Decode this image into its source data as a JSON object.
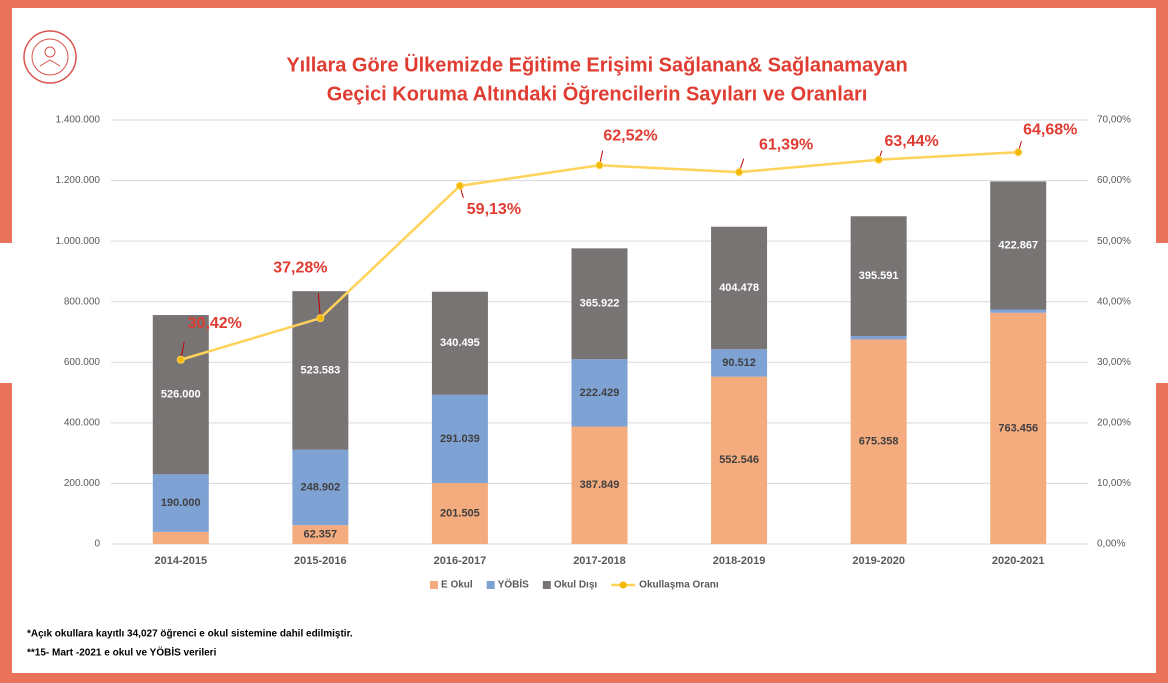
{
  "chart_data": {
    "type": "bar",
    "title": "Yıllara Göre Ülkemizde Eğitime Erişimi Sağlanan& Sağlanamayan",
    "subtitle": "Geçici Koruma Altındaki Öğrencilerin Sayıları ve Oranları",
    "categories": [
      "2014-2015",
      "2015-2016",
      "2016-2017",
      "2017-2018",
      "2018-2019",
      "2019-2020",
      "2020-2021"
    ],
    "stacked": true,
    "series": [
      {
        "name": "E Okul",
        "color": "#f4ab7e",
        "values": [
          40000,
          62357,
          201505,
          387849,
          552546,
          675358,
          763456
        ],
        "value_labels": [
          "40.000",
          "62.357",
          "201.505",
          "387.849",
          "552.546",
          "675.358",
          "763.456"
        ]
      },
      {
        "name": "YÖBİS",
        "color": "#7fa2d5",
        "values": [
          190000,
          248902,
          291039,
          222429,
          90512,
          11223,
          10801
        ],
        "value_labels": [
          "190.000",
          "248.902",
          "291.039",
          "222.429",
          "90.512",
          "11.223",
          "10.801"
        ]
      },
      {
        "name": "Okul Dışı",
        "color": "#777473",
        "values": [
          526000,
          523583,
          340495,
          365922,
          404478,
          395591,
          422867
        ],
        "value_labels": [
          "526.000",
          "523.583",
          "340.495",
          "365.922",
          "404.478",
          "395.591",
          "422.867"
        ]
      },
      {
        "name": "Okullaşma Oranı",
        "type": "line",
        "axis": "y2",
        "color": "#ffd35a",
        "values": [
          30.42,
          37.28,
          59.13,
          62.52,
          61.39,
          63.44,
          64.68
        ],
        "value_labels": [
          "30,42%",
          "37,28%",
          "59,13%",
          "62,52%",
          "61,39%",
          "63,44%",
          "64,68%"
        ]
      }
    ],
    "ylim": [
      0,
      1400000
    ],
    "yticks": [
      0,
      {
        "value": 200000,
        "label": "200.000"
      },
      {
        "value": 400000,
        "label": "400.000"
      },
      {
        "value": 600000,
        "label": "600.000"
      },
      {
        "value": 800000,
        "label": "800.000"
      },
      {
        "value": 1000000,
        "label": "1.000.000"
      },
      {
        "value": 1200000,
        "label": "1.200.000"
      },
      {
        "value": 1400000,
        "label": "1.400.000"
      }
    ],
    "y2lim": [
      0,
      70
    ],
    "y2ticks": [
      {
        "value": 0,
        "label": "0,00%"
      },
      {
        "value": 10,
        "label": "10,00%"
      },
      {
        "value": 20,
        "label": "20,00%"
      },
      {
        "value": 30,
        "label": "30,00%"
      },
      {
        "value": 40,
        "label": "40,00%"
      },
      {
        "value": 50,
        "label": "50,00%"
      },
      {
        "value": 60,
        "label": "60,00%"
      },
      {
        "value": 70,
        "label": "70,00%"
      }
    ],
    "grid": true,
    "legend": "bottom",
    "notes": [
      "*Açık okullara kayıtlı 34,027 öğrenci  e okul sistemine dahil edilmiştir.",
      "**15- Mart -2021 e okul ve YÖBİS verileri"
    ]
  }
}
